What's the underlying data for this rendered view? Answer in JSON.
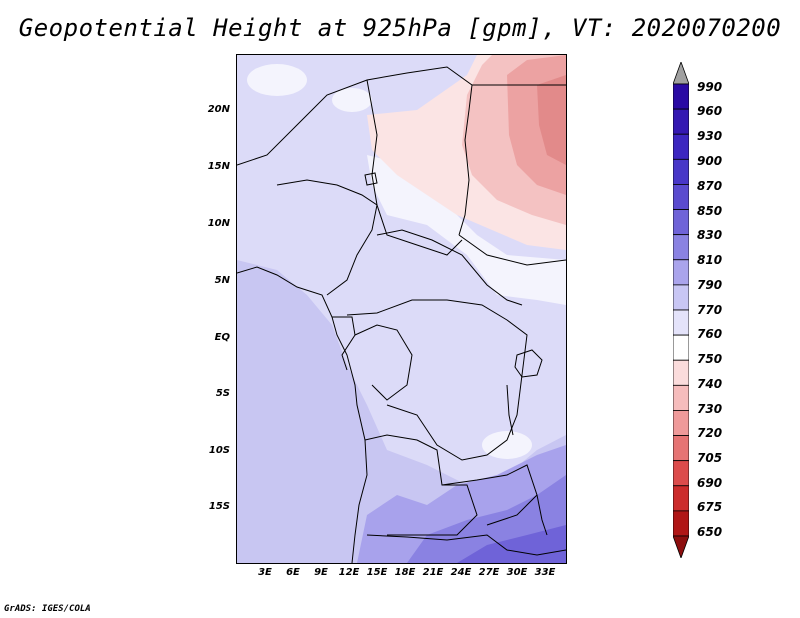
{
  "title": "Geopotential Height at 925hPa [gpm], VT: 2020070200",
  "credit": "GrADS: IGES/COLA",
  "map": {
    "y_ticks": [
      "20N",
      "15N",
      "10N",
      "5N",
      "EQ",
      "5S",
      "10S",
      "15S"
    ],
    "x_ticks": [
      "3E",
      "6E",
      "9E",
      "12E",
      "15E",
      "18E",
      "21E",
      "24E",
      "27E",
      "30E",
      "33E"
    ]
  },
  "colorbar": {
    "levels": [
      "990",
      "960",
      "930",
      "900",
      "870",
      "850",
      "830",
      "810",
      "790",
      "770",
      "760",
      "750",
      "740",
      "730",
      "720",
      "705",
      "690",
      "675",
      "650"
    ],
    "colors": [
      "#ffffff",
      "#2a0aa4",
      "#3418b2",
      "#3c26c0",
      "#4837c8",
      "#5a4bcf",
      "#6f63d8",
      "#8a82e2",
      "#aaa4ec",
      "#c8c6f4",
      "#e4e3fa",
      "#ffffff",
      "#fbdcdc",
      "#f6bcbc",
      "#ef9a9a",
      "#e67474",
      "#dc4c4c",
      "#cc2c2c",
      "#b01616",
      "#8c0e0e"
    ],
    "extend": "both"
  }
}
